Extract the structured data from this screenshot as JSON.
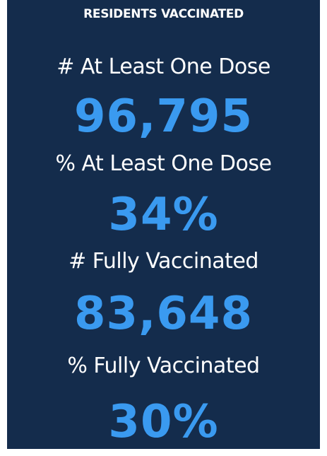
{
  "header": {
    "title": "RESIDENTS VACCINATED"
  },
  "metrics": [
    {
      "label": "# At Least One Dose",
      "value": "96,795"
    },
    {
      "label": "% At Least One Dose",
      "value": "34%"
    },
    {
      "label": "# Fully Vaccinated",
      "value": "83,648"
    },
    {
      "label": "% Fully Vaccinated",
      "value": "30%"
    }
  ]
}
